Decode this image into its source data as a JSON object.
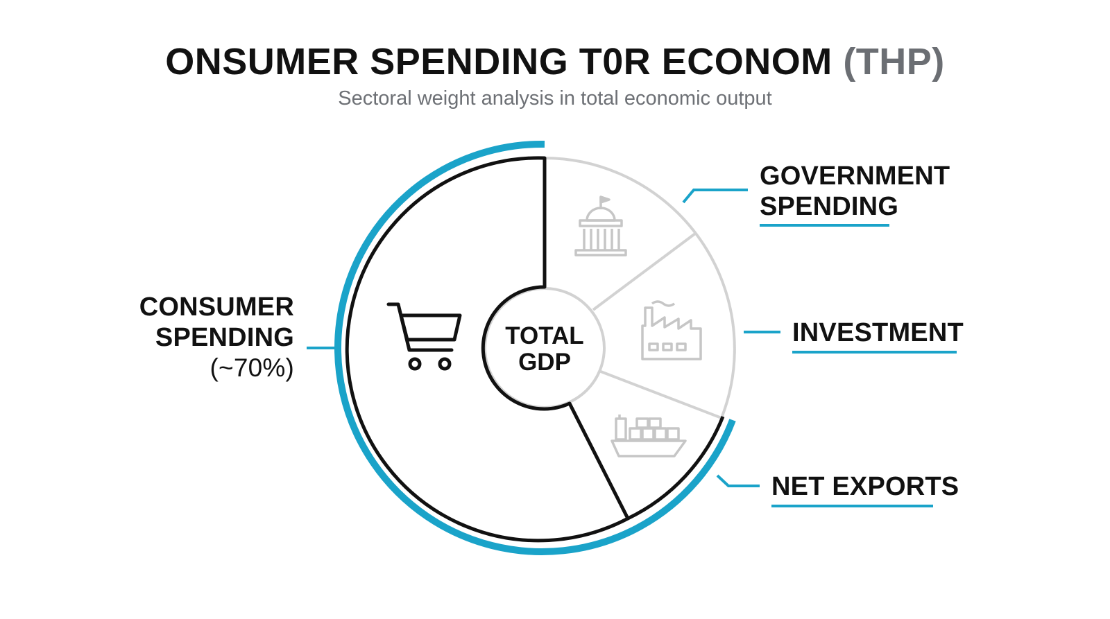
{
  "header": {
    "title_main": "ONSUMER SPENDING T0R ECONOM",
    "title_accent": "(THP)",
    "subtitle": "Sectoral weight analysis in total economic output"
  },
  "center": {
    "line1": "TOTAL",
    "line2": "GDP"
  },
  "segments": [
    {
      "line1": "CONSUMER",
      "line2": "SPENDING",
      "share": "(~70%)",
      "icon": "shopping-cart-icon"
    },
    {
      "line1": "GOVERNMENT",
      "line2": "SPENDING",
      "icon": "government-building-icon"
    },
    {
      "line1": "INVESTMENT",
      "icon": "factory-icon"
    },
    {
      "line1": "NET EXPORTS",
      "icon": "cargo-ship-icon"
    }
  ],
  "colors": {
    "accent": "#1aa3c9",
    "dark": "#111111",
    "muted": "#cfcfcf",
    "subtitle": "#6d7075"
  }
}
